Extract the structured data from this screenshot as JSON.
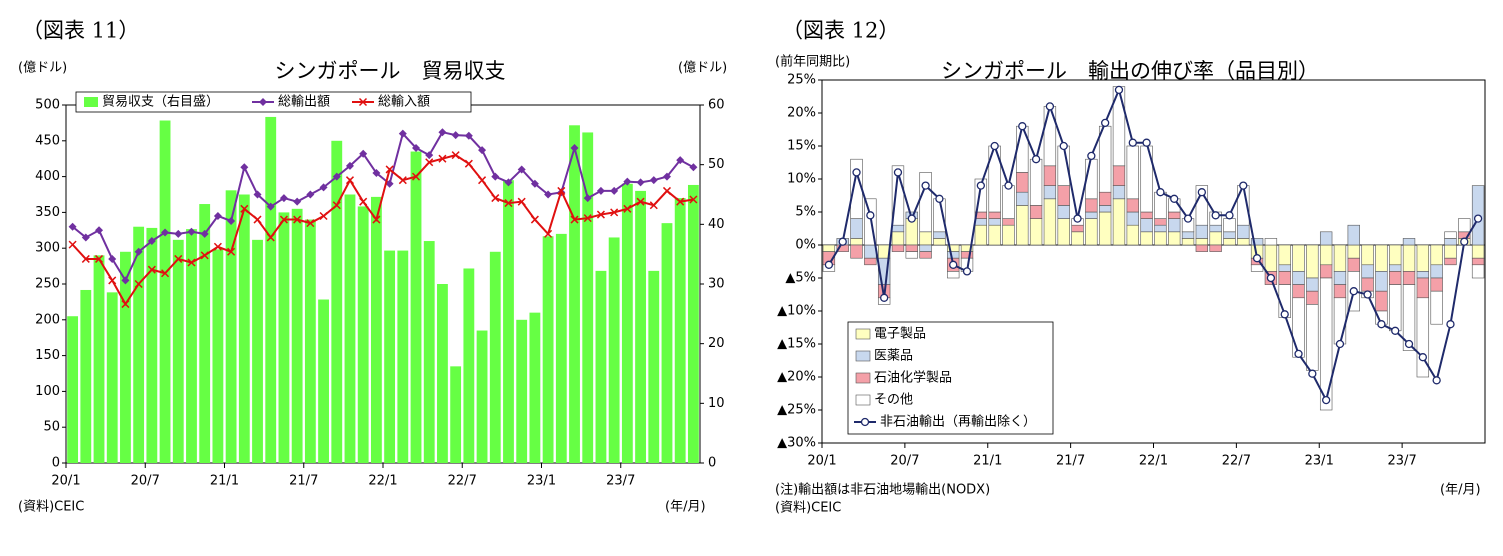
{
  "chart_data": [
    {
      "type": "combo",
      "figure_label": "（図表 11）",
      "title": "シンガポール　貿易収支",
      "y_label": "(億ドル)",
      "y2_label": "(億ドル)",
      "x_label": "(年/月)",
      "source": "(資料)CEIC",
      "categories": [
        "20/1",
        null,
        null,
        null,
        null,
        null,
        "20/7",
        null,
        null,
        null,
        null,
        null,
        "21/1",
        null,
        null,
        null,
        null,
        null,
        "21/7",
        null,
        null,
        null,
        null,
        null,
        "22/1",
        null,
        null,
        null,
        null,
        null,
        "22/7",
        null,
        null,
        null,
        null,
        null,
        "23/1",
        null,
        null,
        null,
        null,
        null,
        "23/7",
        null,
        null,
        null,
        null,
        null
      ],
      "ylim": [
        0,
        500
      ],
      "yticks": [
        0,
        50,
        100,
        150,
        200,
        250,
        300,
        350,
        400,
        450,
        500
      ],
      "y2lim": [
        0,
        60
      ],
      "y2ticks": [
        0,
        10,
        20,
        30,
        40,
        50,
        60
      ],
      "legend": "upper left",
      "series": [
        {
          "name": "貿易収支（右目盛）",
          "kind": "bar",
          "axis": "y2",
          "color": "#66ff44",
          "values": [
            24.6,
            29,
            34.8,
            28.6,
            35.4,
            39.6,
            39.4,
            57.4,
            37.4,
            39.2,
            43.4,
            35.8,
            45.7,
            45,
            37.4,
            58,
            42,
            42.6,
            40.8,
            27.4,
            54,
            45,
            43,
            44.6,
            35.6,
            35.6,
            52.2,
            37.2,
            30,
            16.2,
            32.6,
            22.2,
            35.4,
            47.4,
            24,
            25.2,
            38,
            38.4,
            56.6,
            55.4,
            32.2,
            37.8,
            46.8,
            45.6,
            32.2,
            40.2,
            44.4,
            46.6
          ]
        },
        {
          "name": "総輸出額",
          "kind": "line",
          "marker": "diamond",
          "color": "#7030a0",
          "values": [
            330,
            315,
            325,
            285,
            255,
            295,
            310,
            322,
            320,
            323,
            320,
            345,
            338,
            413,
            375,
            358,
            370,
            365,
            375,
            385,
            400,
            415,
            432,
            405,
            390,
            460,
            440,
            430,
            462,
            458,
            457,
            437,
            400,
            392,
            410,
            390,
            375,
            378,
            440,
            370,
            380,
            380,
            393,
            392,
            395,
            400,
            423,
            413
          ]
        },
        {
          "name": "総輸入額",
          "kind": "line",
          "marker": "x",
          "color": "#e01010",
          "values": [
            305,
            285,
            285,
            255,
            222,
            250,
            270,
            265,
            285,
            280,
            290,
            302,
            295,
            355,
            340,
            315,
            340,
            340,
            335,
            345,
            360,
            395,
            365,
            340,
            410,
            395,
            400,
            420,
            425,
            430,
            418,
            395,
            370,
            363,
            365,
            340,
            320,
            380,
            340,
            342,
            347,
            350,
            355,
            365,
            360,
            380,
            365,
            368
          ]
        }
      ]
    },
    {
      "type": "stacked_bar_line",
      "figure_label": "（図表 12）",
      "title": "シンガポール　輸出の伸び率（品目別）",
      "y_label": "(前年同期比)",
      "x_label": "(年/月)",
      "note": "(注)輸出額は非石油地場輸出(NODX)",
      "source": "(資料)CEIC",
      "categories": [
        "20/1",
        null,
        null,
        null,
        null,
        null,
        "20/7",
        null,
        null,
        null,
        null,
        null,
        "21/1",
        null,
        null,
        null,
        null,
        null,
        "21/7",
        null,
        null,
        null,
        null,
        null,
        "22/1",
        null,
        null,
        null,
        null,
        null,
        "22/7",
        null,
        null,
        null,
        null,
        null,
        "23/1",
        null,
        null,
        null,
        null,
        null,
        "23/7",
        null,
        null,
        null,
        null,
        null
      ],
      "ylim": [
        -30,
        25
      ],
      "yticks": [
        {
          "value": 25,
          "label": "25%"
        },
        {
          "value": 20,
          "label": "20%"
        },
        {
          "value": 15,
          "label": "15%"
        },
        {
          "value": 10,
          "label": "10%"
        },
        {
          "value": 5,
          "label": "5%"
        },
        {
          "value": 0,
          "label": "0%"
        },
        {
          "value": -5,
          "label": "▲5%"
        },
        {
          "value": -10,
          "label": "▲10%"
        },
        {
          "value": -15,
          "label": "▲15%"
        },
        {
          "value": -20,
          "label": "▲20%"
        },
        {
          "value": -25,
          "label": "▲25%"
        },
        {
          "value": -30,
          "label": "▲30%"
        }
      ],
      "legend": "lower left",
      "series": [
        {
          "name": "電子製品",
          "kind": "bar",
          "color": "#ffffc0",
          "values": [
            -1,
            0,
            1,
            0,
            -2,
            2,
            4,
            2,
            1,
            -1,
            -1,
            3,
            3,
            3,
            6,
            4,
            7,
            4,
            2,
            4,
            5,
            7,
            3,
            2,
            2,
            2,
            1,
            1,
            2,
            1,
            1,
            -2,
            -4,
            -3,
            -4,
            -5,
            -3,
            -4,
            -2,
            -3,
            -4,
            -3,
            -4,
            -4,
            -3,
            -2,
            1,
            -2
          ]
        },
        {
          "name": "医薬品",
          "kind": "bar",
          "color": "#c8d8ee",
          "values": [
            0,
            1,
            3,
            -2,
            -4,
            1,
            1,
            -1,
            1,
            -1,
            0,
            1,
            1,
            0,
            2,
            0,
            2,
            2,
            0,
            1,
            1,
            2,
            2,
            2,
            1,
            2,
            1,
            2,
            1,
            1,
            2,
            1,
            0,
            -1,
            -2,
            -2,
            2,
            -2,
            3,
            -2,
            -3,
            -1,
            1,
            -1,
            -2,
            1,
            0,
            9
          ]
        },
        {
          "name": "石油化学製品",
          "kind": "bar",
          "color": "#f4a0a8",
          "values": [
            -2,
            -1,
            -2,
            -1,
            -2,
            -1,
            -1,
            -1,
            0,
            -2,
            -1,
            1,
            1,
            1,
            3,
            2,
            3,
            3,
            1,
            2,
            2,
            3,
            2,
            1,
            1,
            1,
            0,
            -1,
            -1,
            0,
            0,
            -1,
            -2,
            -2,
            -2,
            -2,
            -2,
            -2,
            -2,
            -2,
            -3,
            -2,
            -2,
            -3,
            -2,
            -1,
            1,
            -1
          ]
        },
        {
          "name": "その他",
          "kind": "bar",
          "color": "#ffffff",
          "values": [
            -1,
            0,
            9,
            7,
            -1,
            9,
            -1,
            9,
            5,
            -1,
            -2,
            5,
            10,
            5,
            7,
            7,
            9,
            6,
            1,
            6,
            10,
            12,
            8,
            10,
            4,
            2,
            2,
            6,
            2,
            2,
            6,
            -1,
            1,
            -5,
            -9,
            -10,
            -20,
            -7,
            -6,
            -1,
            -2,
            -7,
            -10,
            -12,
            -5,
            1,
            2,
            -2
          ]
        },
        {
          "name": "非石油輸出（再輸出除く）",
          "kind": "line",
          "marker": "circle",
          "color": "#1f2a6b",
          "values": [
            -3,
            0.5,
            11,
            4.5,
            -8,
            11,
            4,
            9,
            7,
            -3,
            -4,
            9,
            15,
            9,
            18,
            13,
            21,
            15,
            4,
            13.5,
            18.5,
            23.5,
            15.5,
            15.5,
            8,
            7,
            4,
            8,
            4.5,
            4.5,
            9,
            -2,
            -5,
            -10.5,
            -16.5,
            -19.5,
            -23.5,
            -15,
            -7,
            -7.5,
            -12,
            -13,
            -15,
            -17,
            -20.5,
            -12,
            0.5,
            4
          ]
        }
      ]
    }
  ]
}
